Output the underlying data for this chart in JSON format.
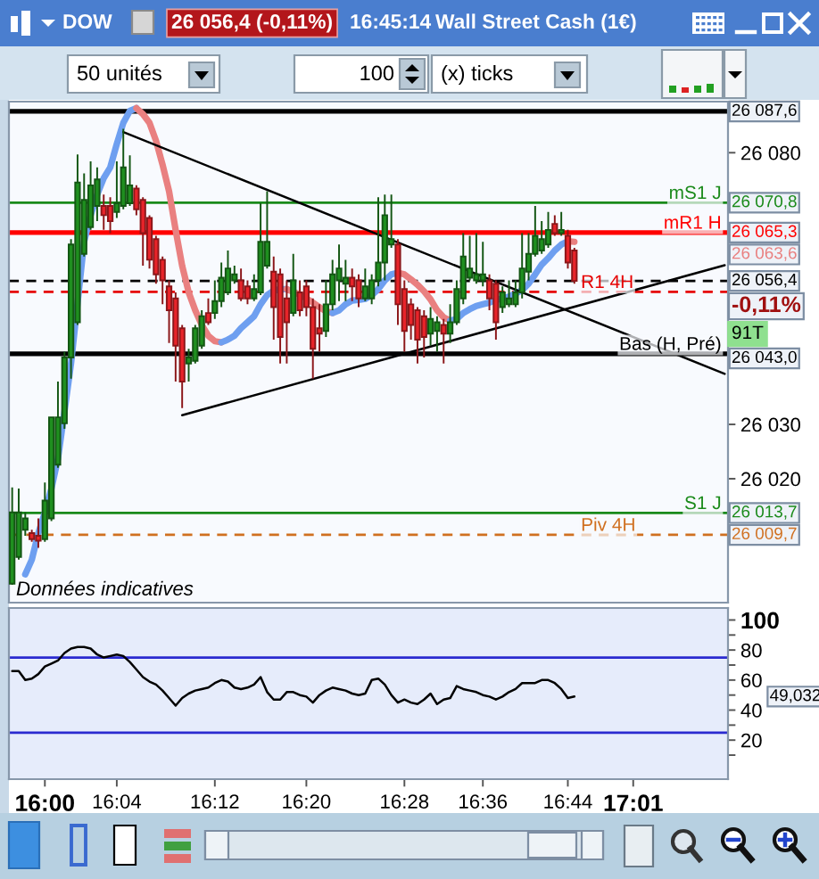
{
  "chart_data": [
    {
      "type": "candlestick",
      "title": "DOW",
      "tick_labels": "y",
      "categories": [
        null,
        null,
        null,
        null,
        null,
        null,
        null,
        null,
        null,
        null,
        null,
        null,
        null,
        null,
        null,
        null,
        null,
        null,
        null,
        null,
        null,
        null,
        null,
        null,
        null,
        null,
        null,
        null,
        null,
        null,
        null,
        null,
        null,
        null,
        null,
        null,
        null,
        null,
        null,
        null,
        null,
        null,
        null,
        null,
        null,
        null,
        null,
        null,
        null,
        null,
        null,
        null,
        null,
        null,
        null,
        null,
        null,
        null,
        null,
        null,
        null,
        null,
        null,
        null,
        null,
        null,
        null,
        null,
        null,
        null,
        null,
        null,
        null,
        null,
        null,
        null,
        null,
        null,
        null,
        null,
        null,
        null,
        null,
        null,
        null,
        null,
        null,
        null,
        null,
        null,
        null,
        null,
        null,
        null,
        null,
        null,
        null,
        null,
        null,
        null,
        null,
        null,
        null,
        null,
        null,
        null,
        null,
        null,
        null,
        null
      ],
      "ohlc": [
        [
          26000.7,
          26018.4,
          26000.5,
          26013.8
        ],
        [
          26005.6,
          26018.2,
          26005.1,
          26013.8
        ],
        [
          26010.6,
          26013.8,
          26009.5,
          26012.7
        ],
        [
          26010.0,
          26010.6,
          26008.4,
          26008.9
        ],
        [
          26009.5,
          26012.7,
          26007.3,
          26008.6
        ],
        [
          26008.9,
          26019.3,
          26008.4,
          26016.0
        ],
        [
          26012.7,
          26031.3,
          26012.2,
          26031.3
        ],
        [
          26022.6,
          26037.9,
          26022.0,
          26031.3
        ],
        [
          26030.2,
          26043.4,
          26029.2,
          26042.3
        ],
        [
          26042.3,
          26064.1,
          26038.4,
          26063.1
        ],
        [
          26048.8,
          26079.7,
          26048.3,
          26074.5
        ],
        [
          26061.4,
          26076.2,
          26060.9,
          26071.3
        ],
        [
          26066.3,
          26078.4,
          26065.8,
          26074.0
        ],
        [
          26070.2,
          26077.3,
          26067.4,
          26075.1
        ],
        [
          26070.2,
          26072.3,
          26065.8,
          26068.5
        ],
        [
          26070.2,
          26071.8,
          26065.2,
          26067.4
        ],
        [
          26069.1,
          26078.4,
          26068.0,
          26070.7
        ],
        [
          26070.2,
          26084.4,
          26069.6,
          26077.3
        ],
        [
          26070.7,
          26079.5,
          26070.2,
          26074.0
        ],
        [
          26073.4,
          26074.0,
          26068.5,
          26069.6
        ],
        [
          26071.3,
          26071.8,
          26059.2,
          26065.2
        ],
        [
          26068.0,
          26068.5,
          26058.7,
          26060.3
        ],
        [
          26064.1,
          26064.7,
          26055.9,
          26057.6
        ],
        [
          26060.3,
          26060.9,
          26052.1,
          26056.5
        ],
        [
          26055.4,
          26056.5,
          26045.0,
          26051.0
        ],
        [
          26053.2,
          26054.3,
          26037.9,
          26044.5
        ],
        [
          26047.7,
          26048.3,
          26033.0,
          26037.9
        ],
        [
          26041.2,
          26043.9,
          26037.9,
          26042.3
        ],
        [
          26041.7,
          26048.3,
          26041.2,
          26047.7
        ],
        [
          26044.5,
          26051.0,
          26043.9,
          26049.9
        ],
        [
          26050.5,
          26053.2,
          26048.3,
          26048.8
        ],
        [
          26050.5,
          26056.5,
          26049.4,
          26052.7
        ],
        [
          26052.7,
          26059.8,
          26051.6,
          26057.0
        ],
        [
          26054.3,
          26062.0,
          26053.8,
          26058.7
        ],
        [
          26056.5,
          26059.2,
          26055.9,
          26057.6
        ],
        [
          26056.5,
          26058.7,
          26052.7,
          26053.2
        ],
        [
          26055.4,
          26056.5,
          26052.1,
          26053.2
        ],
        [
          26053.2,
          26057.6,
          26052.7,
          26054.9
        ],
        [
          26054.3,
          26070.7,
          26053.8,
          26063.6
        ],
        [
          26059.2,
          26072.9,
          26058.7,
          26063.6
        ],
        [
          26058.1,
          26060.9,
          26045.6,
          26051.6
        ],
        [
          26057.6,
          26058.7,
          26041.2,
          26046.1
        ],
        [
          26053.2,
          26056.5,
          26041.2,
          26048.8
        ],
        [
          26050.5,
          26061.4,
          26049.9,
          26056.5
        ],
        [
          26054.3,
          26056.5,
          26049.9,
          26051.0
        ],
        [
          26055.4,
          26056.5,
          26049.9,
          26051.6
        ],
        [
          26051.6,
          26053.2,
          26038.4,
          26043.9
        ],
        [
          26047.7,
          26052.1,
          26043.4,
          26046.7
        ],
        [
          26047.2,
          26056.5,
          26046.1,
          26052.1
        ],
        [
          26052.1,
          26060.3,
          26051.0,
          26057.6
        ],
        [
          26056.5,
          26063.1,
          26052.7,
          26058.7
        ],
        [
          26055.9,
          26060.3,
          26052.7,
          26057.0
        ],
        [
          26057.0,
          26058.7,
          26052.7,
          26055.4
        ],
        [
          26056.5,
          26057.6,
          26051.6,
          26053.2
        ],
        [
          26053.2,
          26058.7,
          26052.7,
          26055.4
        ],
        [
          26053.2,
          26057.6,
          26052.1,
          26056.5
        ],
        [
          26056.5,
          26071.8,
          26055.4,
          26059.8
        ],
        [
          26059.8,
          26072.3,
          26056.5,
          26068.5
        ],
        [
          26063.1,
          26072.3,
          26062.5,
          26064.1
        ],
        [
          26063.1,
          26064.1,
          26048.3,
          26052.1
        ],
        [
          26054.9,
          26056.5,
          26043.4,
          26047.2
        ],
        [
          26052.1,
          26053.2,
          26045.6,
          26048.3
        ],
        [
          26051.0,
          26051.6,
          26041.2,
          26045.6
        ],
        [
          26049.9,
          26051.0,
          26042.3,
          26046.1
        ],
        [
          26046.7,
          26051.6,
          26044.5,
          26049.4
        ],
        [
          26047.2,
          26049.9,
          26043.4,
          26048.8
        ],
        [
          26048.3,
          26049.4,
          26041.2,
          26046.7
        ],
        [
          26046.7,
          26052.1,
          26045.0,
          26048.8
        ],
        [
          26048.8,
          26056.5,
          26048.3,
          26054.9
        ],
        [
          26053.2,
          26065.2,
          26052.1,
          26060.9
        ],
        [
          26057.0,
          26064.7,
          26056.5,
          26058.7
        ],
        [
          26056.5,
          26065.2,
          26055.9,
          26057.6
        ],
        [
          26056.5,
          26063.6,
          26055.4,
          26057.6
        ],
        [
          26056.5,
          26057.6,
          26051.0,
          26053.2
        ],
        [
          26055.9,
          26056.5,
          26045.6,
          26048.8
        ],
        [
          26051.6,
          26055.4,
          26050.5,
          26054.3
        ],
        [
          26052.1,
          26056.5,
          26051.6,
          26053.2
        ],
        [
          26052.1,
          26056.5,
          26051.6,
          26054.3
        ],
        [
          26054.3,
          26065.2,
          26053.2,
          26058.7
        ],
        [
          26058.1,
          26065.2,
          26056.5,
          26061.4
        ],
        [
          26061.4,
          26070.2,
          26060.9,
          26064.7
        ],
        [
          26062.0,
          26067.4,
          26061.4,
          26064.1
        ],
        [
          26063.1,
          26069.1,
          26062.5,
          26065.8
        ],
        [
          26066.9,
          26068.5,
          26064.7,
          26065.2
        ],
        [
          26065.2,
          26069.1,
          26064.7,
          26065.8
        ],
        [
          26064.7,
          26065.8,
          26058.7,
          26059.8
        ],
        [
          26062.0,
          26062.5,
          26055.9,
          26056.4
        ],
        null,
        null,
        null,
        null,
        null,
        null,
        null,
        null,
        null,
        null,
        null,
        null,
        null,
        null,
        null,
        null,
        null,
        null,
        null,
        null,
        null,
        null,
        null
      ],
      "colors": [
        "#1f8f1f",
        "#1f8f1f",
        "#1f8f1f",
        "#e8242a",
        "#e8242a",
        "#1f8f1f",
        "#1f8f1f",
        "#1f8f1f",
        "#1f8f1f",
        "#1f8f1f",
        "#1f8f1f",
        "#1f8f1f",
        "#1f8f1f",
        "#1f8f1f",
        "#e8242a",
        "#e8242a",
        "#1f8f1f",
        "#1f8f1f",
        "#1f8f1f",
        "#e8242a",
        "#e8242a",
        "#e8242a",
        "#e8242a",
        "#e8242a",
        "#e8242a",
        "#e8242a",
        "#e8242a",
        "#1f8f1f",
        "#1f8f1f",
        "#1f8f1f",
        "#e8242a",
        "#1f8f1f",
        "#1f8f1f",
        "#1f8f1f",
        "#1f8f1f",
        "#e8242a",
        "#e8242a",
        "#1f8f1f",
        "#1f8f1f",
        "#1f8f1f",
        "#e8242a",
        "#e8242a",
        "#e8242a",
        "#1f8f1f",
        "#e8242a",
        "#e8242a",
        "#e8242a",
        "#e8242a",
        "#1f8f1f",
        "#1f8f1f",
        "#1f8f1f",
        "#1f8f1f",
        "#e8242a",
        "#e8242a",
        "#1f8f1f",
        "#1f8f1f",
        "#1f8f1f",
        "#1f8f1f",
        "#1f8f1f",
        "#e8242a",
        "#e8242a",
        "#e8242a",
        "#e8242a",
        "#e8242a",
        "#1f8f1f",
        "#1f8f1f",
        "#e8242a",
        "#1f8f1f",
        "#1f8f1f",
        "#1f8f1f",
        "#1f8f1f",
        "#1f8f1f",
        "#1f8f1f",
        "#e8242a",
        "#e8242a",
        "#1f8f1f",
        "#1f8f1f",
        "#1f8f1f",
        "#1f8f1f",
        "#1f8f1f",
        "#1f8f1f",
        "#1f8f1f",
        "#1f8f1f",
        "#e8242a",
        "#1f8f1f",
        "#e8242a",
        "#e8242a",
        null,
        null,
        null,
        null,
        null,
        null,
        null,
        null,
        null,
        null,
        null,
        null,
        null,
        null,
        null,
        null,
        null,
        null,
        null,
        null,
        null,
        null,
        null
      ],
      "series": [
        {
          "type": "line",
          "color": "#6e9ff0",
          "values": [
            null,
            null,
            26002.4,
            26005.1,
            26010.0,
            26013.8,
            26018.2,
            26023.7,
            26032.4,
            26041.2,
            null,
            26063.6,
            26068.5,
            26072.3,
            26075.3,
            26077.3,
            26081.6,
            26085.5,
            26087.7,
            26088.2,
            null,
            null,
            null,
            null,
            null,
            null,
            null,
            null,
            null,
            null,
            null,
            null,
            null,
            null,
            null,
            null,
            null,
            null,
            null,
            null,
            null,
            null,
            null,
            null,
            null,
            null,
            null,
            null,
            null,
            null,
            null,
            null,
            null,
            null,
            null,
            null,
            null,
            null,
            null,
            null,
            null,
            null,
            null,
            null,
            null,
            null,
            null,
            null,
            null,
            null,
            null,
            null,
            null,
            null,
            null,
            null,
            null,
            null,
            null,
            null,
            null,
            null,
            null,
            null,
            null,
            null,
            null,
            null,
            null,
            null,
            null,
            null,
            null,
            null,
            null,
            null,
            null,
            null,
            null,
            null,
            null,
            null,
            null,
            null,
            null,
            null,
            null,
            null,
            null,
            null
          ]
        },
        {
          "type": "line",
          "color": "#e98080",
          "values": [
            null,
            null,
            null,
            null,
            null,
            null,
            null,
            null,
            null,
            null,
            null,
            null,
            null,
            null,
            null,
            null,
            null,
            null,
            null,
            26088.2,
            26087.1,
            26085.5,
            26082.2,
            26077.8,
            26072.9,
            26065.8,
            26059.2,
            26054.3,
            26051.0,
            26048.3,
            26046.3,
            26045.3,
            26045.1,
            null,
            null,
            null,
            null,
            null,
            null,
            null,
            null,
            null,
            null,
            null,
            null,
            null,
            null,
            null,
            null,
            null,
            null,
            null,
            null,
            null,
            null,
            null,
            null,
            null,
            null,
            null,
            null,
            null,
            null,
            null,
            null,
            null,
            null,
            null,
            null,
            null,
            null,
            null,
            null,
            null,
            null,
            null,
            null,
            null,
            null,
            null,
            null,
            null,
            null,
            null,
            null,
            null,
            null,
            null,
            null,
            null,
            null,
            null,
            null,
            null,
            null,
            null,
            null,
            null,
            null,
            null,
            null,
            null,
            null,
            null,
            null,
            null,
            null,
            null,
            null,
            null
          ]
        },
        {
          "type": "line",
          "color": "#6e9ff0",
          "values": [
            null,
            null,
            null,
            null,
            null,
            null,
            null,
            null,
            null,
            null,
            null,
            null,
            null,
            null,
            null,
            null,
            null,
            null,
            null,
            null,
            null,
            null,
            null,
            null,
            null,
            null,
            null,
            null,
            null,
            null,
            null,
            null,
            26045.1,
            26045.6,
            26046.3,
            26047.7,
            26048.8,
            26049.9,
            26052.1,
            26053.8,
            26054.6,
            26054.9,
            26054.9,
            null,
            null,
            null,
            null,
            null,
            null,
            null,
            null,
            null,
            null,
            null,
            null,
            null,
            null,
            null,
            null,
            null,
            null,
            null,
            null,
            null,
            null,
            null,
            null,
            null,
            null,
            null,
            null,
            null,
            null,
            null,
            null,
            null,
            null,
            null,
            null,
            null,
            null,
            null,
            null,
            null,
            null,
            null,
            null,
            null,
            null,
            null,
            null,
            null,
            null,
            null,
            null,
            null,
            null,
            null,
            null,
            null,
            null,
            null,
            null,
            null,
            null,
            null,
            null,
            null,
            null,
            null
          ]
        },
        {
          "type": "line",
          "color": "#e98080",
          "values": [
            null,
            null,
            null,
            null,
            null,
            null,
            null,
            null,
            null,
            null,
            null,
            null,
            null,
            null,
            null,
            null,
            null,
            null,
            null,
            null,
            null,
            null,
            null,
            null,
            null,
            null,
            null,
            null,
            null,
            null,
            null,
            null,
            null,
            null,
            null,
            null,
            null,
            null,
            null,
            null,
            null,
            null,
            26054.9,
            26054.4,
            26053.9,
            26053.2,
            26052.4,
            26051.6,
            26050.8,
            26050.5,
            null,
            null,
            null,
            null,
            null,
            null,
            null,
            null,
            null,
            null,
            null,
            null,
            null,
            null,
            null,
            null,
            null,
            null,
            null,
            null,
            null,
            null,
            null,
            null,
            null,
            null,
            null,
            null,
            null,
            null,
            null,
            null,
            null,
            null,
            null,
            null,
            null,
            null,
            null,
            null,
            null,
            null,
            null,
            null,
            null,
            null,
            null,
            null,
            null,
            null,
            null,
            null,
            null,
            null,
            null,
            null,
            null,
            null,
            null,
            null
          ]
        },
        {
          "type": "line",
          "color": "#6e9ff0",
          "values": [
            null,
            null,
            null,
            null,
            null,
            null,
            null,
            null,
            null,
            null,
            null,
            null,
            null,
            null,
            null,
            null,
            null,
            null,
            null,
            null,
            null,
            null,
            null,
            null,
            null,
            null,
            null,
            null,
            null,
            null,
            null,
            null,
            null,
            null,
            null,
            null,
            null,
            null,
            null,
            null,
            null,
            null,
            null,
            null,
            null,
            null,
            null,
            null,
            null,
            26050.5,
            26051.0,
            26052.1,
            26052.8,
            26052.9,
            26053.1,
            26053.8,
            26054.9,
            26056.5,
            26057.6,
            26057.9,
            null,
            null,
            null,
            null,
            null,
            null,
            null,
            null,
            null,
            null,
            null,
            null,
            null,
            null,
            null,
            null,
            null,
            null,
            null,
            null,
            null,
            null,
            null,
            null,
            null,
            null,
            null,
            null,
            null,
            null,
            null,
            null,
            null,
            null,
            null,
            null,
            null,
            null,
            null,
            null,
            null,
            null,
            null,
            null,
            null,
            null,
            null,
            null,
            null,
            null
          ]
        },
        {
          "type": "line",
          "color": "#e98080",
          "values": [
            null,
            null,
            null,
            null,
            null,
            null,
            null,
            null,
            null,
            null,
            null,
            null,
            null,
            null,
            null,
            null,
            null,
            null,
            null,
            null,
            null,
            null,
            null,
            null,
            null,
            null,
            null,
            null,
            null,
            null,
            null,
            null,
            null,
            null,
            null,
            null,
            null,
            null,
            null,
            null,
            null,
            null,
            null,
            null,
            null,
            null,
            null,
            null,
            null,
            null,
            null,
            null,
            null,
            null,
            null,
            null,
            null,
            null,
            null,
            26057.9,
            26057.6,
            26056.7,
            26055.7,
            26054.5,
            26053.0,
            26051.0,
            26049.7,
            26049.1,
            null,
            null,
            null,
            null,
            null,
            null,
            null,
            null,
            null,
            null,
            null,
            null,
            null,
            null,
            null,
            null,
            null,
            null,
            null,
            null,
            null,
            null,
            null,
            null,
            null,
            null,
            null,
            null,
            null,
            null,
            null,
            null,
            null,
            null,
            null,
            null,
            null,
            null,
            null,
            null,
            null,
            null
          ]
        },
        {
          "type": "line",
          "color": "#6e9ff0",
          "values": [
            null,
            null,
            null,
            null,
            null,
            null,
            null,
            null,
            null,
            null,
            null,
            null,
            null,
            null,
            null,
            null,
            null,
            null,
            null,
            null,
            null,
            null,
            null,
            null,
            null,
            null,
            null,
            null,
            null,
            null,
            null,
            null,
            null,
            null,
            null,
            null,
            null,
            null,
            null,
            null,
            null,
            null,
            null,
            null,
            null,
            null,
            null,
            null,
            null,
            null,
            null,
            null,
            null,
            null,
            null,
            null,
            null,
            null,
            null,
            null,
            null,
            null,
            null,
            null,
            null,
            null,
            null,
            26049.1,
            26049.4,
            26050.5,
            26051.2,
            26051.8,
            26052.1,
            26052.4,
            26052.9,
            26053.2,
            26053.5,
            26054.1,
            26054.7,
            26055.9,
            26057.6,
            26059.4,
            26060.6,
            26062.0,
            26063.1,
            26063.7,
            null,
            null,
            null,
            null,
            null,
            null,
            null,
            null,
            null,
            null,
            null,
            null,
            null,
            null,
            null,
            null,
            null,
            null,
            null,
            null,
            null,
            null,
            null,
            null
          ]
        },
        {
          "type": "line",
          "color": "#e98080",
          "values": [
            null,
            null,
            null,
            null,
            null,
            null,
            null,
            null,
            null,
            null,
            null,
            null,
            null,
            null,
            null,
            null,
            null,
            null,
            null,
            null,
            null,
            null,
            null,
            null,
            null,
            null,
            null,
            null,
            null,
            null,
            null,
            null,
            null,
            null,
            null,
            null,
            null,
            null,
            null,
            null,
            null,
            null,
            null,
            null,
            null,
            null,
            null,
            null,
            null,
            null,
            null,
            null,
            null,
            null,
            null,
            null,
            null,
            null,
            null,
            null,
            null,
            null,
            null,
            null,
            null,
            null,
            null,
            null,
            null,
            null,
            null,
            null,
            null,
            null,
            null,
            null,
            null,
            null,
            null,
            null,
            null,
            null,
            null,
            null,
            null,
            26063.7,
            26063.6,
            null,
            null,
            null,
            null,
            null,
            null,
            null,
            null,
            null,
            null,
            null,
            null,
            null,
            null,
            null,
            null,
            null,
            null,
            null,
            null,
            null,
            null,
            null
          ]
        },
        {
          "type": "line",
          "color": "#000000",
          "values": [
            null,
            null,
            null,
            null,
            null,
            null,
            null,
            null,
            null,
            null,
            null,
            null,
            null,
            null,
            null,
            null,
            null,
            26083.8,
            null,
            null,
            null,
            null,
            null,
            null,
            null,
            null,
            null,
            null,
            null,
            null,
            null,
            null,
            null,
            null,
            null,
            null,
            null,
            null,
            null,
            null,
            null,
            null,
            null,
            null,
            null,
            null,
            null,
            null,
            null,
            null,
            null,
            null,
            null,
            null,
            null,
            null,
            null,
            null,
            null,
            null,
            null,
            null,
            null,
            null,
            null,
            null,
            null,
            null,
            null,
            null,
            null,
            null,
            null,
            null,
            null,
            null,
            null,
            null,
            null,
            null,
            null,
            null,
            null,
            null,
            null,
            null,
            null,
            null,
            null,
            null,
            null,
            null,
            null,
            null,
            null,
            null,
            null,
            null,
            null,
            null,
            null,
            null,
            null,
            null,
            null,
            null,
            null,
            null,
            null,
            26039.3
          ]
        },
        {
          "type": "line",
          "color": "#000000",
          "values": [
            null,
            null,
            null,
            null,
            null,
            null,
            null,
            null,
            null,
            null,
            null,
            null,
            null,
            null,
            null,
            null,
            null,
            null,
            null,
            null,
            null,
            null,
            null,
            null,
            null,
            null,
            26031.7,
            null,
            null,
            null,
            null,
            null,
            null,
            null,
            null,
            null,
            null,
            null,
            null,
            null,
            null,
            null,
            null,
            null,
            null,
            null,
            null,
            null,
            null,
            null,
            null,
            null,
            null,
            null,
            null,
            null,
            null,
            null,
            null,
            null,
            null,
            null,
            null,
            null,
            null,
            null,
            null,
            null,
            null,
            null,
            null,
            null,
            null,
            null,
            null,
            null,
            null,
            null,
            null,
            null,
            null,
            null,
            null,
            null,
            null,
            null,
            null,
            null,
            null,
            null,
            null,
            null,
            null,
            null,
            null,
            null,
            null,
            null,
            null,
            null,
            null,
            null,
            null,
            null,
            null,
            null,
            null,
            null,
            null,
            26059.3
          ]
        }
      ],
      "ylim": [
        25997.2,
        26089.4
      ],
      "yticks": [
        {
          "value": 26020,
          "label": "26 020"
        },
        {
          "value": 26030,
          "label": "26 030"
        },
        {
          "value": 26080,
          "label": "26 080"
        }
      ],
      "ref_lines": [
        {
          "axis": "y",
          "value": 26087.6,
          "color": "#000000"
        },
        {
          "axis": "y",
          "value": 26070.8,
          "label": "mS1 J",
          "color": "#1a8a1a"
        },
        {
          "axis": "y",
          "value": 26065.3,
          "label": "mR1 H",
          "color": "#ff0000"
        },
        {
          "axis": "y",
          "value": 26056.4,
          "color": "#000000",
          "line_style": "dashed"
        },
        {
          "axis": "y",
          "value": 26054.4,
          "label": "R1 4H",
          "color": "#e60000",
          "line_style": "dashed"
        },
        {
          "axis": "y",
          "value": 26043.0,
          "label": "Bas (H, Pré)",
          "color": "#000000"
        },
        {
          "axis": "y",
          "value": 26013.7,
          "label": "S1 J",
          "color": "#1a8a1a"
        },
        {
          "axis": "y",
          "value": 26009.7,
          "label": "Piv 4H",
          "color": "#d07020",
          "line_style": "dashed"
        }
      ],
      "annotations": [
        "26 056,4 (-0,11%)",
        "16:45:14",
        "Wall Street Cash (1€)",
        "50 unités",
        "100",
        "(x) ticks",
        "Données indicatives",
        "26 087,6",
        "26 070,8",
        "26 065,3",
        "26 063,6",
        "26 056,4",
        "-0,11%",
        "91T",
        "26 043,0",
        "26 013,7",
        "26 009,7"
      ]
    },
    {
      "type": "line",
      "categories": [
        null,
        null,
        null,
        null,
        null,
        "16:00",
        null,
        null,
        null,
        null,
        null,
        null,
        null,
        null,
        null,
        null,
        "16:04",
        null,
        null,
        null,
        null,
        null,
        null,
        null,
        null,
        null,
        null,
        null,
        null,
        null,
        null,
        "16:12",
        null,
        null,
        null,
        null,
        null,
        null,
        null,
        null,
        null,
        null,
        null,
        null,
        null,
        "16:20",
        null,
        null,
        null,
        null,
        null,
        null,
        null,
        null,
        null,
        null,
        null,
        null,
        null,
        null,
        "16:28",
        null,
        null,
        null,
        null,
        null,
        null,
        null,
        null,
        null,
        null,
        null,
        "16:36",
        null,
        null,
        null,
        null,
        null,
        null,
        null,
        null,
        null,
        null,
        null,
        null,
        "16:44",
        null,
        null,
        null,
        null,
        null,
        null,
        null,
        null,
        null,
        "17:01",
        null,
        null,
        null,
        null,
        null,
        null,
        null,
        null,
        null,
        null,
        null,
        null,
        null,
        null
      ],
      "series": [
        {
          "color": "#000000",
          "values": [
            66,
            66,
            60,
            61,
            64,
            69,
            71,
            73,
            78,
            81,
            82,
            82,
            81,
            77,
            75,
            76,
            77,
            76,
            72,
            67,
            62,
            59,
            57,
            53,
            48,
            43,
            48,
            51,
            53,
            54,
            55,
            58,
            60,
            59,
            55,
            54,
            55,
            57,
            62,
            52,
            47,
            47,
            52,
            52,
            50,
            49,
            45,
            50,
            53,
            55,
            54,
            53,
            51,
            50,
            51,
            60,
            61,
            57,
            50,
            45,
            47,
            45,
            44,
            47,
            51,
            44,
            47,
            48,
            56,
            54,
            53,
            52,
            50,
            49,
            47,
            49,
            52,
            54,
            58,
            58,
            58,
            60,
            60,
            58,
            54,
            48,
            49.032,
            null,
            null,
            null,
            null,
            null,
            null,
            null,
            null,
            null,
            null,
            null,
            null,
            null,
            null,
            null,
            null,
            null,
            null,
            null,
            null,
            null,
            null,
            null
          ]
        }
      ],
      "ylim": [
        -6,
        108
      ],
      "yticks": [
        {
          "value": 10,
          "label": null
        },
        20,
        {
          "value": 30,
          "label": null
        },
        40,
        {
          "value": 50,
          "label": null
        },
        60,
        {
          "value": 70,
          "label": null
        },
        80,
        {
          "value": 90,
          "label": null
        },
        100
      ],
      "ref_lines": [
        {
          "axis": "y",
          "value": 75,
          "color": "#2a2ad0"
        },
        {
          "axis": "y",
          "value": 25,
          "color": "#2a2ad0"
        }
      ],
      "annotations": [
        "49,032"
      ]
    }
  ]
}
